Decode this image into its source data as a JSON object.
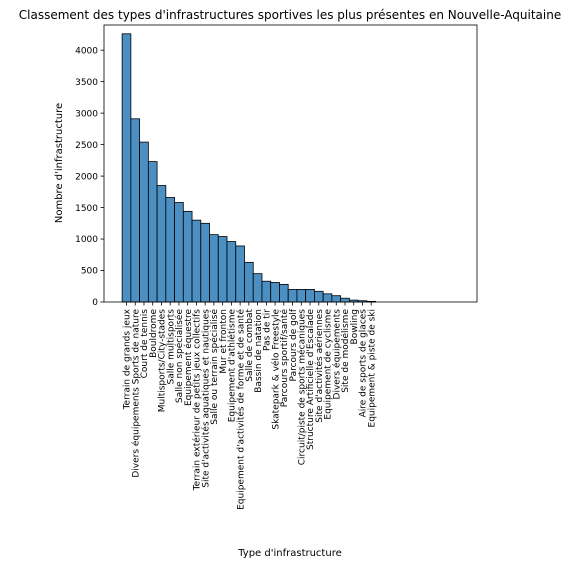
{
  "chart_data": {
    "type": "bar",
    "title": "Classement des types d'infrastructures sportives les plus présentes en Nouvelle-Aquitaine",
    "xlabel": "Type d'infrastructure",
    "ylabel": "Nombre d'infrastructure",
    "ylim": [
      0,
      4400
    ],
    "yticks": [
      0,
      500,
      1000,
      1500,
      2000,
      2500,
      3000,
      3500,
      4000
    ],
    "grid": false,
    "bar_color": "#4c8fc3",
    "categories": [
      "Terrain de grands jeux",
      "Divers équipements Sports de nature",
      "Court de tennis",
      "Bouldrome",
      "Multisports/City-stades",
      "Salle multisports",
      "Salle non spécialisée",
      "Equipement équestre",
      "Terrain extérieur de petits jeux collectifs",
      "Site d'activités aquatiques et nautiques",
      "Salle ou terrain spécialisé",
      "Mur et fronton",
      "Equipement d'athlétisme",
      "Equipement d'activités de forme et de santé",
      "Salle de combat",
      "Bassin de natation",
      "Pas de tir",
      "Skatepark & vélo Freestyle",
      "Parcours sportif/santé",
      "Parcours de golf",
      "Circuit/piste de sports mécaniques",
      "Structure Artificielle d'Escalade",
      "Site d'activités aériennes",
      "Equipement de cyclisme",
      "Divers équipements",
      "Site de modélisme",
      "Bowling",
      "Aire de sports de glaces",
      "Equipement & piste de ski"
    ],
    "values": [
      4260,
      2910,
      2540,
      2230,
      1850,
      1660,
      1580,
      1440,
      1300,
      1250,
      1070,
      1040,
      960,
      890,
      630,
      450,
      330,
      310,
      280,
      200,
      200,
      200,
      170,
      130,
      100,
      60,
      30,
      20,
      10
    ]
  }
}
